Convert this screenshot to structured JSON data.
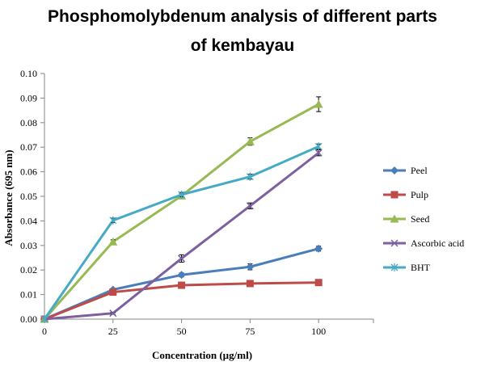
{
  "chart_data": {
    "type": "line",
    "title_lines": [
      "Phosphomolybdenum analysis of different parts",
      "of kembayau"
    ],
    "xlabel": "Concentration (µg/ml)",
    "ylabel": "Absorbance (695 nm)",
    "x": [
      0,
      25,
      50,
      75,
      100
    ],
    "x_ticks": [
      "0",
      "25",
      "50",
      "75",
      "100"
    ],
    "xlim": [
      0,
      120
    ],
    "ylim": [
      0,
      0.1
    ],
    "y_ticks": [
      "0.00",
      "0.01",
      "0.02",
      "0.03",
      "0.04",
      "0.05",
      "0.06",
      "0.07",
      "0.08",
      "0.09",
      "0.10"
    ],
    "grid": false,
    "legend_position": "right",
    "series": [
      {
        "name": "Peel",
        "color": "#4a7ebb",
        "marker": "diamond",
        "values": [
          0,
          0.012,
          0.018,
          0.0213,
          0.0287
        ],
        "errors": [
          0,
          0.0005,
          0.0008,
          0.0012,
          0.001
        ]
      },
      {
        "name": "Pulp",
        "color": "#be4b48",
        "marker": "square",
        "values": [
          0,
          0.011,
          0.0138,
          0.0145,
          0.0149
        ],
        "errors": [
          0,
          0.0005,
          0.0005,
          0.0005,
          0.0005
        ]
      },
      {
        "name": "Seed",
        "color": "#98b954",
        "marker": "triangle",
        "values": [
          0,
          0.0315,
          0.0502,
          0.0723,
          0.0875
        ],
        "errors": [
          0,
          0.0008,
          0.001,
          0.0015,
          0.003
        ]
      },
      {
        "name": "Ascorbic acid",
        "color": "#7d60a0",
        "marker": "x",
        "values": [
          0,
          0.0024,
          0.0247,
          0.0461,
          0.0677
        ],
        "errors": [
          0,
          0.0004,
          0.0015,
          0.0012,
          0.0012
        ]
      },
      {
        "name": "BHT",
        "color": "#46aac5",
        "marker": "star",
        "values": [
          0,
          0.0402,
          0.0507,
          0.058,
          0.0703
        ],
        "errors": [
          0,
          0.0009,
          0.0009,
          0.001,
          0.001
        ]
      }
    ]
  }
}
